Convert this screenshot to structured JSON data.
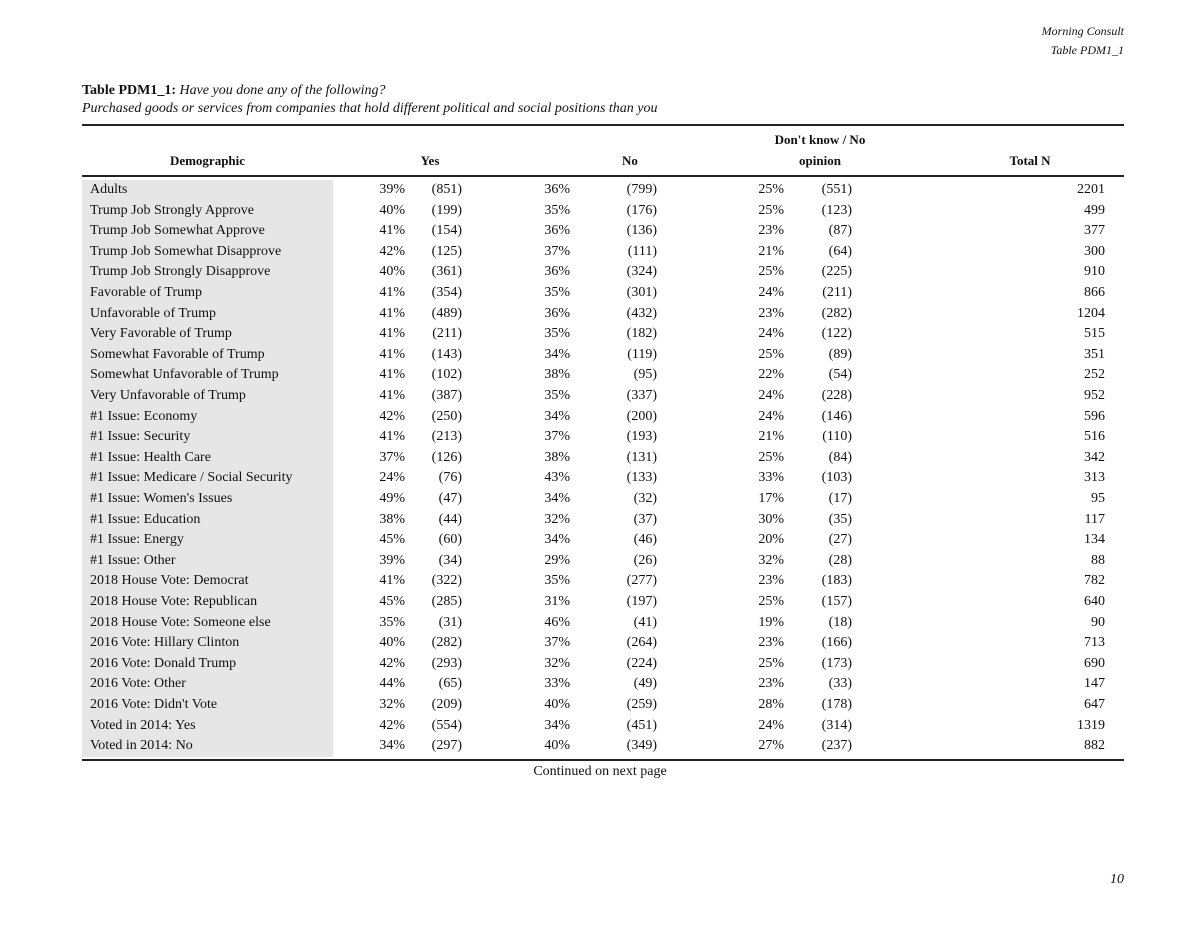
{
  "header": {
    "org": "Morning Consult",
    "table_id": "Table PDM1_1"
  },
  "title": {
    "label": "Table PDM1_1:",
    "question": "Have you done any of the following?",
    "subtitle": "Purchased goods or services from companies that hold different political and social positions than you"
  },
  "columns": {
    "demographic": "Demographic",
    "yes": "Yes",
    "no": "No",
    "dk_line1": "Don't know / No",
    "dk_line2": "opinion",
    "total": "Total N"
  },
  "rows": [
    {
      "demo": "Adults",
      "yes_pct": "39%",
      "yes_n": "(851)",
      "no_pct": "36%",
      "no_n": "(799)",
      "dk_pct": "25%",
      "dk_n": "(551)",
      "total": "2201"
    },
    {
      "demo": "Trump Job Strongly Approve",
      "yes_pct": "40%",
      "yes_n": "(199)",
      "no_pct": "35%",
      "no_n": "(176)",
      "dk_pct": "25%",
      "dk_n": "(123)",
      "total": "499"
    },
    {
      "demo": "Trump Job Somewhat Approve",
      "yes_pct": "41%",
      "yes_n": "(154)",
      "no_pct": "36%",
      "no_n": "(136)",
      "dk_pct": "23%",
      "dk_n": "(87)",
      "total": "377"
    },
    {
      "demo": "Trump Job Somewhat Disapprove",
      "yes_pct": "42%",
      "yes_n": "(125)",
      "no_pct": "37%",
      "no_n": "(111)",
      "dk_pct": "21%",
      "dk_n": "(64)",
      "total": "300"
    },
    {
      "demo": "Trump Job Strongly Disapprove",
      "yes_pct": "40%",
      "yes_n": "(361)",
      "no_pct": "36%",
      "no_n": "(324)",
      "dk_pct": "25%",
      "dk_n": "(225)",
      "total": "910"
    },
    {
      "demo": "Favorable of Trump",
      "yes_pct": "41%",
      "yes_n": "(354)",
      "no_pct": "35%",
      "no_n": "(301)",
      "dk_pct": "24%",
      "dk_n": "(211)",
      "total": "866"
    },
    {
      "demo": "Unfavorable of Trump",
      "yes_pct": "41%",
      "yes_n": "(489)",
      "no_pct": "36%",
      "no_n": "(432)",
      "dk_pct": "23%",
      "dk_n": "(282)",
      "total": "1204"
    },
    {
      "demo": "Very Favorable of Trump",
      "yes_pct": "41%",
      "yes_n": "(211)",
      "no_pct": "35%",
      "no_n": "(182)",
      "dk_pct": "24%",
      "dk_n": "(122)",
      "total": "515"
    },
    {
      "demo": "Somewhat Favorable of Trump",
      "yes_pct": "41%",
      "yes_n": "(143)",
      "no_pct": "34%",
      "no_n": "(119)",
      "dk_pct": "25%",
      "dk_n": "(89)",
      "total": "351"
    },
    {
      "demo": "Somewhat Unfavorable of Trump",
      "yes_pct": "41%",
      "yes_n": "(102)",
      "no_pct": "38%",
      "no_n": "(95)",
      "dk_pct": "22%",
      "dk_n": "(54)",
      "total": "252"
    },
    {
      "demo": "Very Unfavorable of Trump",
      "yes_pct": "41%",
      "yes_n": "(387)",
      "no_pct": "35%",
      "no_n": "(337)",
      "dk_pct": "24%",
      "dk_n": "(228)",
      "total": "952"
    },
    {
      "demo": "#1 Issue: Economy",
      "yes_pct": "42%",
      "yes_n": "(250)",
      "no_pct": "34%",
      "no_n": "(200)",
      "dk_pct": "24%",
      "dk_n": "(146)",
      "total": "596"
    },
    {
      "demo": "#1 Issue: Security",
      "yes_pct": "41%",
      "yes_n": "(213)",
      "no_pct": "37%",
      "no_n": "(193)",
      "dk_pct": "21%",
      "dk_n": "(110)",
      "total": "516"
    },
    {
      "demo": "#1 Issue: Health Care",
      "yes_pct": "37%",
      "yes_n": "(126)",
      "no_pct": "38%",
      "no_n": "(131)",
      "dk_pct": "25%",
      "dk_n": "(84)",
      "total": "342"
    },
    {
      "demo": "#1 Issue: Medicare / Social Security",
      "yes_pct": "24%",
      "yes_n": "(76)",
      "no_pct": "43%",
      "no_n": "(133)",
      "dk_pct": "33%",
      "dk_n": "(103)",
      "total": "313"
    },
    {
      "demo": "#1 Issue: Women's Issues",
      "yes_pct": "49%",
      "yes_n": "(47)",
      "no_pct": "34%",
      "no_n": "(32)",
      "dk_pct": "17%",
      "dk_n": "(17)",
      "total": "95"
    },
    {
      "demo": "#1 Issue: Education",
      "yes_pct": "38%",
      "yes_n": "(44)",
      "no_pct": "32%",
      "no_n": "(37)",
      "dk_pct": "30%",
      "dk_n": "(35)",
      "total": "117"
    },
    {
      "demo": "#1 Issue: Energy",
      "yes_pct": "45%",
      "yes_n": "(60)",
      "no_pct": "34%",
      "no_n": "(46)",
      "dk_pct": "20%",
      "dk_n": "(27)",
      "total": "134"
    },
    {
      "demo": "#1 Issue: Other",
      "yes_pct": "39%",
      "yes_n": "(34)",
      "no_pct": "29%",
      "no_n": "(26)",
      "dk_pct": "32%",
      "dk_n": "(28)",
      "total": "88"
    },
    {
      "demo": "2018 House Vote: Democrat",
      "yes_pct": "41%",
      "yes_n": "(322)",
      "no_pct": "35%",
      "no_n": "(277)",
      "dk_pct": "23%",
      "dk_n": "(183)",
      "total": "782"
    },
    {
      "demo": "2018 House Vote: Republican",
      "yes_pct": "45%",
      "yes_n": "(285)",
      "no_pct": "31%",
      "no_n": "(197)",
      "dk_pct": "25%",
      "dk_n": "(157)",
      "total": "640"
    },
    {
      "demo": "2018 House Vote: Someone else",
      "yes_pct": "35%",
      "yes_n": "(31)",
      "no_pct": "46%",
      "no_n": "(41)",
      "dk_pct": "19%",
      "dk_n": "(18)",
      "total": "90"
    },
    {
      "demo": "2016 Vote: Hillary Clinton",
      "yes_pct": "40%",
      "yes_n": "(282)",
      "no_pct": "37%",
      "no_n": "(264)",
      "dk_pct": "23%",
      "dk_n": "(166)",
      "total": "713"
    },
    {
      "demo": "2016 Vote: Donald Trump",
      "yes_pct": "42%",
      "yes_n": "(293)",
      "no_pct": "32%",
      "no_n": "(224)",
      "dk_pct": "25%",
      "dk_n": "(173)",
      "total": "690"
    },
    {
      "demo": "2016 Vote: Other",
      "yes_pct": "44%",
      "yes_n": "(65)",
      "no_pct": "33%",
      "no_n": "(49)",
      "dk_pct": "23%",
      "dk_n": "(33)",
      "total": "147"
    },
    {
      "demo": "2016 Vote: Didn't Vote",
      "yes_pct": "32%",
      "yes_n": "(209)",
      "no_pct": "40%",
      "no_n": "(259)",
      "dk_pct": "28%",
      "dk_n": "(178)",
      "total": "647"
    },
    {
      "demo": "Voted in 2014: Yes",
      "yes_pct": "42%",
      "yes_n": "(554)",
      "no_pct": "34%",
      "no_n": "(451)",
      "dk_pct": "24%",
      "dk_n": "(314)",
      "total": "1319"
    },
    {
      "demo": "Voted in 2014: No",
      "yes_pct": "34%",
      "yes_n": "(297)",
      "no_pct": "40%",
      "no_n": "(349)",
      "dk_pct": "27%",
      "dk_n": "(237)",
      "total": "882"
    }
  ],
  "footer": {
    "continued": "Continued on next page",
    "page_number": "10"
  }
}
